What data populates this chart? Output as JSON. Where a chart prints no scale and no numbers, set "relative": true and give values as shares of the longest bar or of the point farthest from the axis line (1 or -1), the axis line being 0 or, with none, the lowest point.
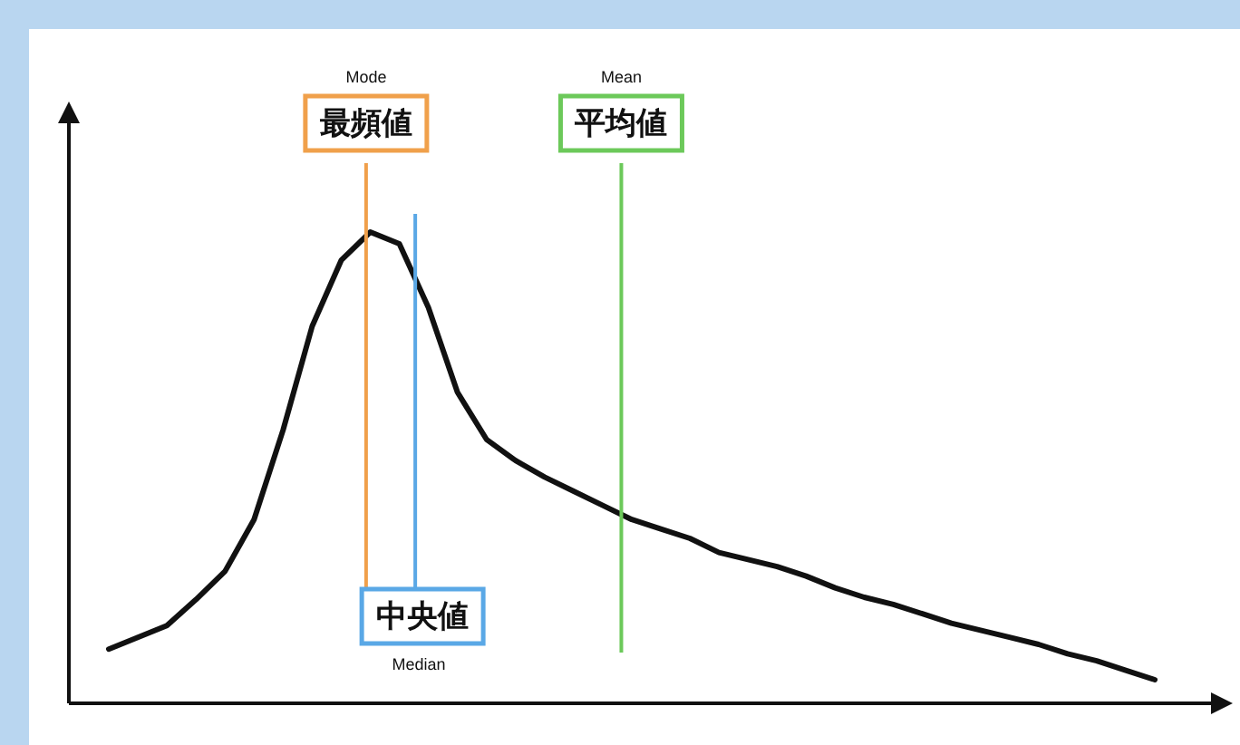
{
  "chart_data": {
    "type": "line",
    "relative": true,
    "legend": false,
    "marker": "none",
    "line_style": "solid",
    "categories": [
      null,
      null,
      null,
      null,
      null,
      null,
      null,
      null,
      null,
      null,
      null,
      null,
      null,
      null,
      null,
      null,
      null,
      null,
      null,
      null,
      null,
      null,
      null,
      null,
      null,
      null,
      null,
      null,
      null,
      null,
      null,
      null,
      null,
      null,
      null,
      null,
      null
    ],
    "series": [
      {
        "color": "#111111",
        "values": [
          0.115,
          0.14,
          0.165,
          0.22,
          0.28,
          0.39,
          0.58,
          0.8,
          0.94,
          1,
          0.975,
          0.84,
          0.66,
          0.56,
          0.515,
          0.48,
          0.45,
          0.42,
          0.39,
          0.37,
          0.35,
          0.32,
          0.305,
          0.29,
          0.27,
          0.245,
          0.225,
          0.21,
          0.19,
          0.17,
          0.155,
          0.14,
          0.125,
          0.105,
          0.09,
          0.07,
          0.05
        ]
      }
    ],
    "annotations": [
      "最頻値",
      "Mode",
      "中央値",
      "Median",
      "平均値",
      "Mean"
    ]
  }
}
